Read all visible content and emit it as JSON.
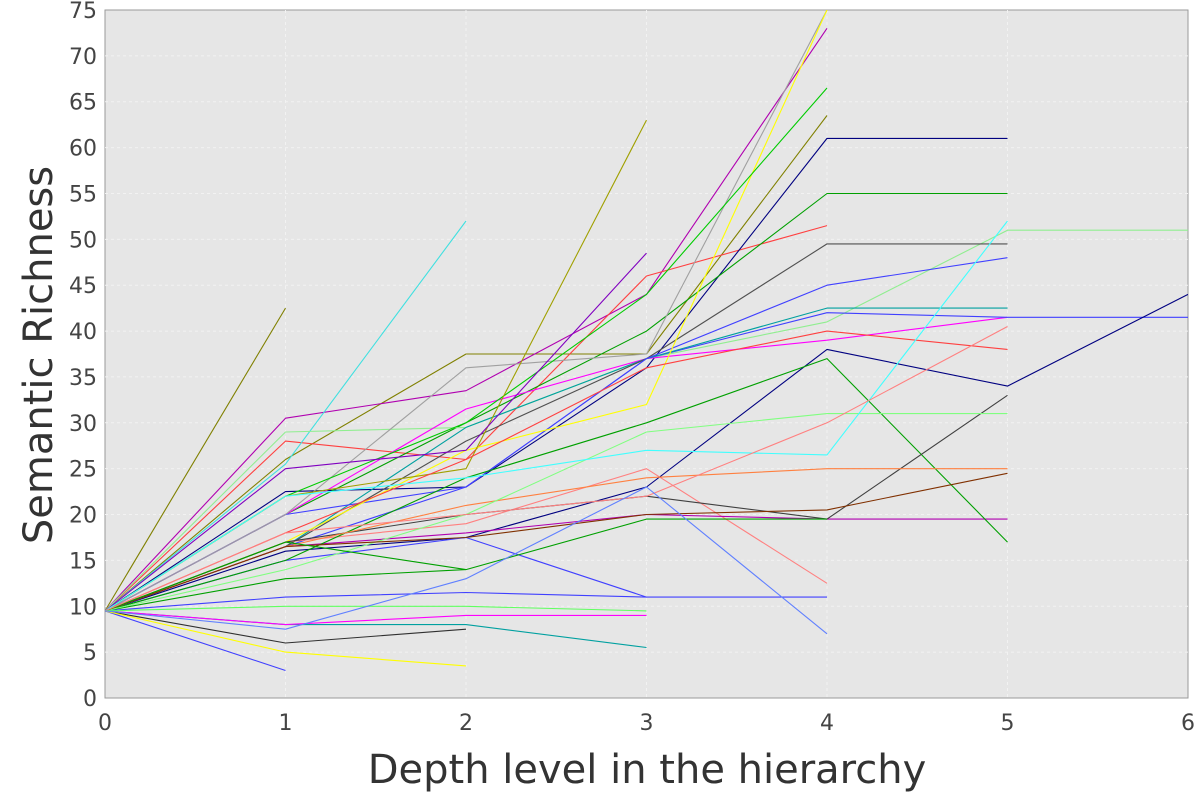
{
  "chart_data": {
    "type": "line",
    "title": "",
    "xlabel": "Depth level in the hierarchy",
    "ylabel": "Semantic Richness",
    "xlim": [
      0,
      6
    ],
    "ylim": [
      0,
      75
    ],
    "x_ticks": [
      "0",
      "1",
      "2",
      "3",
      "4",
      "5",
      "6"
    ],
    "y_ticks": [
      "0",
      "5",
      "10",
      "15",
      "20",
      "25",
      "30",
      "35",
      "40",
      "45",
      "50",
      "55",
      "60",
      "65",
      "70",
      "75"
    ],
    "grid": true,
    "legend": "none",
    "background": "#e6e6e6",
    "series": [
      {
        "color": "#808000",
        "x": [
          0,
          1
        ],
        "y": [
          9.5,
          42.5
        ]
      },
      {
        "color": "#808000",
        "x": [
          0,
          1,
          2,
          3,
          4
        ],
        "y": [
          9.5,
          26,
          37.5,
          37.5,
          63.5
        ]
      },
      {
        "color": "#b000b0",
        "x": [
          0,
          1,
          2,
          3,
          4
        ],
        "y": [
          9.5,
          30.5,
          33.5,
          44,
          73
        ]
      },
      {
        "color": "#ff4040",
        "x": [
          0,
          1,
          2,
          3,
          4
        ],
        "y": [
          9.5,
          28,
          26,
          46,
          51.5
        ]
      },
      {
        "color": "#000080",
        "x": [
          0,
          1,
          2,
          3,
          4,
          5
        ],
        "y": [
          9.5,
          22.5,
          23,
          36,
          61,
          61
        ]
      },
      {
        "color": "#00a000",
        "x": [
          0,
          1,
          2,
          3,
          4,
          5
        ],
        "y": [
          9.5,
          20,
          30,
          40,
          55,
          55
        ]
      },
      {
        "color": "#40e0e0",
        "x": [
          0,
          1,
          2
        ],
        "y": [
          9.5,
          25.5,
          52
        ]
      },
      {
        "color": "#90ee90",
        "x": [
          0,
          1,
          2,
          3,
          4,
          5,
          6
        ],
        "y": [
          9.5,
          29,
          29.5,
          37,
          41,
          51,
          51
        ]
      },
      {
        "color": "#ff00ff",
        "x": [
          0,
          1,
          2,
          3,
          4,
          5
        ],
        "y": [
          9.5,
          20,
          31.5,
          37,
          39,
          41.5
        ]
      },
      {
        "color": "#4040ff",
        "x": [
          0,
          1,
          2,
          3,
          4,
          5,
          6
        ],
        "y": [
          9.5,
          16.5,
          23,
          37,
          42,
          41.5,
          41.5
        ]
      },
      {
        "color": "#000080",
        "x": [
          0,
          1,
          2,
          3,
          4,
          5,
          6
        ],
        "y": [
          9.5,
          16,
          17.5,
          23,
          38,
          34,
          44
        ]
      },
      {
        "color": "#00a0a0",
        "x": [
          0,
          1,
          2,
          3,
          4,
          5
        ],
        "y": [
          9.5,
          16.5,
          29.5,
          37,
          42.5,
          42.5
        ]
      },
      {
        "color": "#505050",
        "x": [
          0,
          1,
          2,
          3,
          4,
          5
        ],
        "y": [
          9.5,
          16.5,
          28,
          37,
          49.5,
          49.5
        ]
      },
      {
        "color": "#4040ff",
        "x": [
          0,
          1,
          2,
          3,
          4,
          5
        ],
        "y": [
          9.5,
          20,
          23,
          37,
          45,
          48
        ]
      },
      {
        "color": "#ff8080",
        "x": [
          0,
          1,
          2,
          3,
          4
        ],
        "y": [
          9.5,
          17,
          19,
          25,
          12.5
        ]
      },
      {
        "color": "#4040ff",
        "x": [
          0,
          1,
          2,
          3
        ],
        "y": [
          9.5,
          15,
          17.5,
          11
        ]
      },
      {
        "color": "#4040ff",
        "x": [
          0,
          1
        ],
        "y": [
          9.5,
          3
        ]
      },
      {
        "color": "#303030",
        "x": [
          0,
          1,
          2
        ],
        "y": [
          9.5,
          6,
          7.5
        ]
      },
      {
        "color": "#00a0a0",
        "x": [
          0,
          1,
          2,
          3
        ],
        "y": [
          9.5,
          8,
          8,
          5.5
        ]
      },
      {
        "color": "#ff00ff",
        "x": [
          0,
          1,
          2,
          3
        ],
        "y": [
          9.5,
          8,
          9,
          9
        ]
      },
      {
        "color": "#ffff00",
        "x": [
          0,
          1,
          2
        ],
        "y": [
          9.5,
          5,
          3.5
        ]
      },
      {
        "color": "#00a000",
        "x": [
          0,
          1,
          2
        ],
        "y": [
          9.5,
          13,
          14
        ]
      },
      {
        "color": "#4040ff",
        "x": [
          0,
          1,
          2,
          3,
          4
        ],
        "y": [
          9.5,
          11,
          11.5,
          11,
          11
        ]
      },
      {
        "color": "#b000b0",
        "x": [
          0,
          1,
          2,
          3,
          4,
          5
        ],
        "y": [
          9.5,
          16.5,
          18,
          20,
          19.5,
          19.5
        ]
      },
      {
        "color": "#a0a0a0",
        "x": [
          0,
          1,
          2,
          3,
          4
        ],
        "y": [
          9.5,
          20,
          36,
          37.5,
          75
        ]
      },
      {
        "color": "#ffff00",
        "x": [
          0,
          1,
          2,
          3,
          4
        ],
        "y": [
          9.5,
          17,
          27,
          32,
          75
        ]
      },
      {
        "color": "#00cc00",
        "x": [
          0,
          1,
          2,
          3,
          4
        ],
        "y": [
          9.5,
          22,
          30,
          44,
          66.5
        ]
      },
      {
        "color": "#a0a000",
        "x": [
          0,
          1,
          2,
          3
        ],
        "y": [
          9.5,
          22,
          25,
          63
        ]
      },
      {
        "color": "#8000c0",
        "x": [
          0,
          1,
          2,
          3
        ],
        "y": [
          9.5,
          25,
          27,
          48.5
        ]
      },
      {
        "color": "#00a000",
        "x": [
          0,
          1,
          2,
          3,
          4,
          5
        ],
        "y": [
          9.5,
          15,
          24,
          30,
          37,
          17
        ]
      },
      {
        "color": "#404040",
        "x": [
          0,
          1,
          2,
          3,
          4,
          5
        ],
        "y": [
          9.5,
          17,
          20,
          22,
          19.5,
          33
        ]
      },
      {
        "color": "#ff8040",
        "x": [
          0,
          1,
          2,
          3,
          4,
          5
        ],
        "y": [
          9.5,
          16.5,
          21,
          24,
          25,
          25
        ]
      },
      {
        "color": "#ff4040",
        "x": [
          0,
          1,
          2,
          3,
          4,
          5
        ],
        "y": [
          9.5,
          18,
          26,
          36,
          40,
          38
        ]
      },
      {
        "color": "#80ff80",
        "x": [
          0,
          1,
          2,
          3,
          4,
          5
        ],
        "y": [
          9.5,
          14,
          20,
          29,
          31,
          31
        ]
      },
      {
        "color": "#40ffff",
        "x": [
          0,
          1,
          2,
          3,
          4,
          5
        ],
        "y": [
          9.5,
          22,
          24,
          27,
          26.5,
          52
        ]
      },
      {
        "color": "#803000",
        "x": [
          0,
          1,
          2,
          3,
          4,
          5
        ],
        "y": [
          9.5,
          16.5,
          17.5,
          20,
          20.5,
          24.5
        ]
      },
      {
        "color": "#00a000",
        "x": [
          0,
          1,
          2,
          3,
          4
        ],
        "y": [
          9.5,
          17,
          14,
          19.5,
          19.5
        ]
      },
      {
        "color": "#ff8080",
        "x": [
          0,
          1,
          2,
          3,
          4,
          5
        ],
        "y": [
          9.5,
          18,
          20,
          22,
          30,
          40.5
        ]
      },
      {
        "color": "#60ff60",
        "x": [
          0,
          1,
          2,
          3
        ],
        "y": [
          9.5,
          10,
          10,
          9.5
        ]
      },
      {
        "color": "#6080ff",
        "x": [
          0,
          1,
          2,
          3,
          4
        ],
        "y": [
          9.5,
          7.5,
          13,
          23,
          7
        ]
      }
    ]
  }
}
